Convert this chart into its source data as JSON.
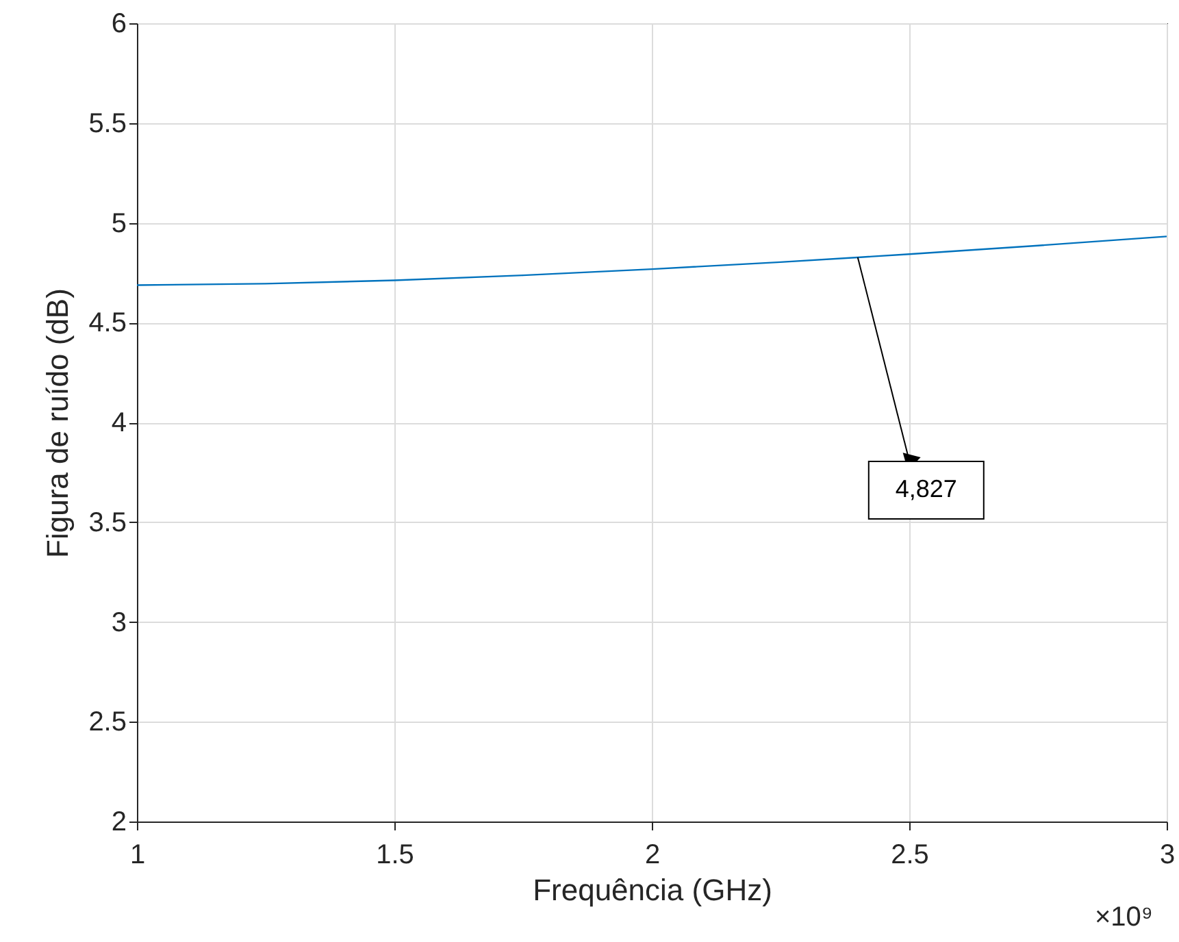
{
  "chart_data": {
    "type": "line",
    "xlabel": "Frequência (GHz)",
    "ylabel": "Figura de ruído (dB)",
    "x": [
      1,
      1.25,
      1.5,
      1.75,
      2,
      2.25,
      2.4,
      2.5,
      2.75,
      3
    ],
    "series": [
      {
        "color": "#0072bd",
        "values": [
          4.688,
          4.695,
          4.712,
          4.737,
          4.768,
          4.803,
          4.827,
          4.843,
          4.886,
          4.932
        ]
      }
    ],
    "xlim": [
      1,
      3
    ],
    "xticks": [
      1,
      1.5,
      2,
      2.5,
      3
    ],
    "ylim": [
      2,
      6
    ],
    "yticks": [
      2,
      2.5,
      3,
      3.5,
      4,
      4.5,
      5,
      5.5,
      6
    ],
    "grid": true,
    "annotations": [
      {
        "text": "4,827",
        "x": 2.4,
        "y": 4.827
      },
      "×10⁹"
    ]
  }
}
